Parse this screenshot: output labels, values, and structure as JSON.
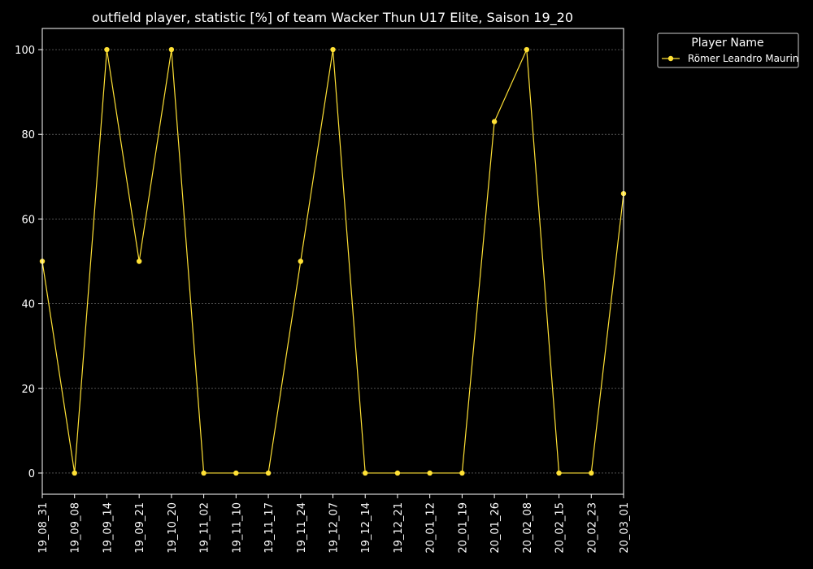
{
  "chart_data": {
    "type": "line",
    "title": "outfield player, statistic [%] of team Wacker Thun U17 Elite, Saison 19_20",
    "xlabel": "",
    "ylabel": "",
    "categories": [
      "19_08_31",
      "19_09_08",
      "19_09_14",
      "19_09_21",
      "19_10_20",
      "19_11_02",
      "19_11_10",
      "19_11_17",
      "19_11_24",
      "19_12_07",
      "19_12_14",
      "19_12_21",
      "20_01_12",
      "20_01_19",
      "20_01_26",
      "20_02_08",
      "20_02_15",
      "20_02_23",
      "20_03_01"
    ],
    "ylim": [
      -5,
      105
    ],
    "yticks": [
      0,
      20,
      40,
      60,
      80,
      100
    ],
    "grid": true,
    "legend": {
      "title": "Player Name",
      "placement": "upper-right-outside"
    },
    "series": [
      {
        "name": "Römer Leandro Maurin",
        "color": "#ffe135",
        "values": [
          50,
          0,
          100,
          50,
          100,
          0,
          0,
          0,
          50,
          100,
          0,
          0,
          0,
          0,
          83,
          100,
          0,
          0,
          66
        ]
      }
    ],
    "colors": {
      "background": "#000000",
      "axes": "#ffffff",
      "grid": "#808080",
      "text": "#ffffff"
    }
  }
}
